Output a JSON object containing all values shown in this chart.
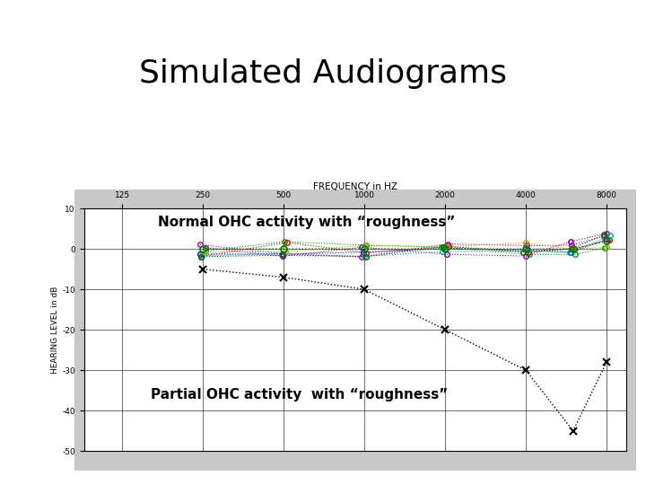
{
  "title": "Simulated Audiograms",
  "title_fontsize": 26,
  "title_font": "sans-serif",
  "xlabel": "FREQUENCY in HZ",
  "ylabel": "HEARING LEVEL in dB",
  "plot_bg_color": "#d0d0d0",
  "outer_bg_color": "#c8c8c8",
  "freq_ticks": [
    125,
    250,
    500,
    1000,
    2000,
    4000,
    8000
  ],
  "freq_labels": [
    "125",
    "250",
    "500",
    "1000",
    "2000",
    "4000",
    "8000"
  ],
  "ylim": [
    -50,
    10
  ],
  "yticks": [
    10,
    0,
    -10,
    -20,
    -30,
    -40,
    -50
  ],
  "ytick_labels": [
    "10",
    "0",
    "-10",
    "-20",
    "-30",
    "-40",
    "-50"
  ],
  "normal_ohc_freqs": [
    250,
    500,
    1000,
    2000,
    4000,
    6000,
    8000
  ],
  "normal_ohc_values": [
    0,
    0,
    0,
    0,
    0,
    0,
    2
  ],
  "partial_ohc_freqs": [
    250,
    500,
    1000,
    2000,
    4000,
    6000,
    8000
  ],
  "partial_ohc_values": [
    -5,
    -7,
    -10,
    -20,
    -30,
    -45,
    -28
  ],
  "label_normal": "Normal OHC activity with “roughness”",
  "label_partial": "Partial OHC activity  with “roughness”",
  "annotation_fontsize": 11,
  "roughness_colors": [
    "#00aa00",
    "#0000cc",
    "#8800aa",
    "#cc0000",
    "#00aaaa",
    "#aa00aa",
    "#aaaa00",
    "#006600"
  ],
  "roughness_seed": 42,
  "roughness_amplitude": 2.0,
  "roughness_freq_jitter": 0.03
}
